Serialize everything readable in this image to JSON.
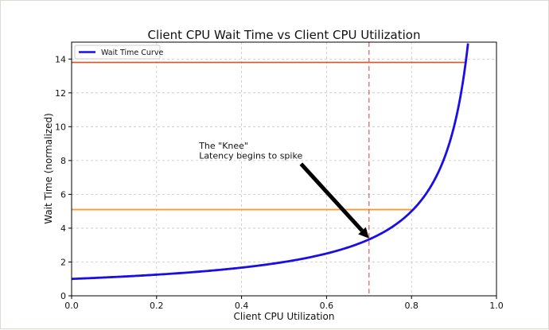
{
  "chart_data": {
    "type": "line",
    "title": "Client CPU Wait Time vs Client CPU Utilization",
    "xlabel": "Client CPU Utilization",
    "ylabel": "Wait Time (normalized)",
    "xlim": [
      0.0,
      1.0
    ],
    "ylim": [
      0,
      15
    ],
    "x_ticks": [
      "0.0",
      "0.2",
      "0.4",
      "0.6",
      "0.8",
      "1.0"
    ],
    "y_ticks": [
      "0",
      "2",
      "4",
      "6",
      "8",
      "10",
      "12",
      "14"
    ],
    "grid": true,
    "legend_position": "top-left",
    "series": [
      {
        "name": "Wait Time Curve",
        "color": "#1a0ee8",
        "function": "1/(1-x)",
        "x": [
          0.0,
          0.1,
          0.2,
          0.3,
          0.4,
          0.5,
          0.6,
          0.7,
          0.75,
          0.8,
          0.85,
          0.88,
          0.9,
          0.92,
          0.933
        ],
        "y": [
          1.0,
          1.11,
          1.25,
          1.43,
          1.67,
          2.0,
          2.5,
          3.33,
          4.0,
          5.0,
          6.67,
          8.33,
          10.0,
          12.5,
          14.9
        ]
      }
    ],
    "reference_lines": [
      {
        "kind": "horizontal",
        "y": 13.8,
        "x_range": [
          0.0,
          0.928
        ],
        "color": "#e2562b"
      },
      {
        "kind": "horizontal",
        "y": 5.1,
        "x_range": [
          0.0,
          0.8
        ],
        "color": "#f39c30"
      },
      {
        "kind": "vertical",
        "x": 0.7,
        "color": "#e65a5a",
        "style": "dashed"
      }
    ],
    "annotations": [
      {
        "lines": [
          "The \"Knee\"",
          "Latency begins to spike"
        ],
        "text_at": [
          0.3,
          8.7
        ],
        "arrow_from": [
          0.54,
          7.8
        ],
        "arrow_to": [
          0.7,
          3.4
        ],
        "color": "#000000"
      }
    ]
  }
}
